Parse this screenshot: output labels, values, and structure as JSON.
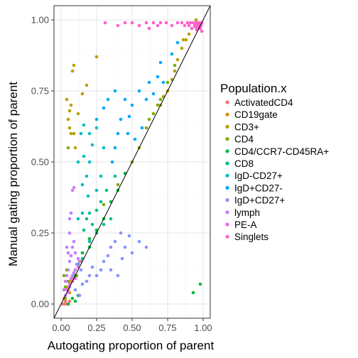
{
  "chart_data": {
    "type": "scatter",
    "xlabel": "Autogating proportion of parent",
    "ylabel": "Manual gating proportion of parent",
    "xlim": [
      -0.05,
      1.05
    ],
    "ylim": [
      -0.05,
      1.05
    ],
    "x_ticks": [
      "0.00",
      "0.25",
      "0.50",
      "0.75",
      "1.00"
    ],
    "y_ticks": [
      "0.00",
      "0.25",
      "0.50",
      "0.75",
      "1.00"
    ],
    "tick_values": [
      0,
      0.25,
      0.5,
      0.75,
      1.0
    ],
    "grid": true,
    "reference_line": "y = x",
    "legend_title": "Population.x",
    "legend_position": "right",
    "series": [
      {
        "name": "ActivatedCD4",
        "color": "#F8766D",
        "points": [
          [
            0.01,
            0.0
          ],
          [
            0.02,
            0.0
          ],
          [
            0.03,
            0.01
          ],
          [
            0.04,
            0.0
          ],
          [
            0.05,
            0.0
          ],
          [
            0.06,
            0.01
          ],
          [
            0.02,
            0.02
          ],
          [
            0.03,
            0.0
          ]
        ]
      },
      {
        "name": "CD19gate",
        "color": "#DE8C00",
        "points": [
          [
            0.05,
            0.05
          ],
          [
            0.08,
            0.1
          ],
          [
            0.1,
            0.12
          ],
          [
            0.12,
            0.14
          ],
          [
            0.06,
            0.04
          ],
          [
            0.09,
            0.09
          ],
          [
            0.14,
            0.15
          ],
          [
            0.04,
            0.06
          ],
          [
            0.11,
            0.1
          ],
          [
            0.07,
            0.08
          ]
        ]
      },
      {
        "name": "CD3+",
        "color": "#B79F00",
        "points": [
          [
            0.04,
            0.72
          ],
          [
            0.07,
            0.7
          ],
          [
            0.06,
            0.68
          ],
          [
            0.08,
            0.82
          ],
          [
            0.09,
            0.84
          ],
          [
            0.06,
            0.62
          ],
          [
            0.07,
            0.6
          ],
          [
            0.1,
            0.55
          ],
          [
            0.15,
            0.74
          ],
          [
            0.18,
            0.77
          ],
          [
            0.25,
            0.87
          ],
          [
            0.12,
            0.67
          ],
          [
            0.75,
            0.75
          ],
          [
            0.78,
            0.79
          ],
          [
            0.8,
            0.82
          ],
          [
            0.82,
            0.86
          ],
          [
            0.85,
            0.9
          ],
          [
            0.88,
            0.93
          ],
          [
            0.9,
            0.95
          ],
          [
            0.92,
            0.97
          ],
          [
            0.7,
            0.7
          ],
          [
            0.72,
            0.73
          ],
          [
            0.86,
            0.93
          ],
          [
            0.09,
            0.6
          ],
          [
            0.05,
            0.65
          ],
          [
            0.95,
            1.0
          ]
        ]
      },
      {
        "name": "CD4",
        "color": "#7CAE00",
        "points": [
          [
            0.02,
            0.05
          ],
          [
            0.03,
            0.02
          ],
          [
            0.05,
            0.08
          ],
          [
            0.05,
            0.55
          ],
          [
            0.3,
            0.35
          ],
          [
            0.4,
            0.42
          ],
          [
            0.5,
            0.5
          ],
          [
            0.55,
            0.55
          ],
          [
            0.6,
            0.62
          ],
          [
            0.65,
            0.67
          ],
          [
            0.7,
            0.72
          ],
          [
            0.75,
            0.78
          ],
          [
            0.8,
            0.84
          ],
          [
            0.62,
            0.65
          ],
          [
            0.68,
            0.7
          ],
          [
            0.02,
            0.1
          ],
          [
            0.04,
            0.12
          ],
          [
            0.06,
            0.07
          ],
          [
            0.03,
            0.06
          ]
        ]
      },
      {
        "name": "CD4/CCR7-CD45RA+",
        "color": "#00BA38",
        "points": [
          [
            0.93,
            0.04
          ],
          [
            0.98,
            0.07
          ],
          [
            0.1,
            0.1
          ],
          [
            0.15,
            0.18
          ],
          [
            0.2,
            0.2
          ],
          [
            0.3,
            0.3
          ],
          [
            0.35,
            0.36
          ],
          [
            0.45,
            0.46
          ],
          [
            0.25,
            0.26
          ],
          [
            0.4,
            0.4
          ],
          [
            0.2,
            0.23
          ],
          [
            0.05,
            0.0
          ],
          [
            0.08,
            0.02
          ],
          [
            0.1,
            0.01
          ],
          [
            0.12,
            0.03
          ]
        ]
      },
      {
        "name": "CD8",
        "color": "#00C08B",
        "points": [
          [
            0.18,
            0.3
          ],
          [
            0.2,
            0.32
          ],
          [
            0.22,
            0.28
          ],
          [
            0.25,
            0.33
          ],
          [
            0.28,
            0.36
          ],
          [
            0.16,
            0.26
          ],
          [
            0.3,
            0.28
          ],
          [
            0.35,
            0.3
          ],
          [
            0.2,
            0.22
          ],
          [
            0.25,
            0.25
          ],
          [
            0.12,
            0.14
          ],
          [
            0.15,
            0.16
          ],
          [
            0.32,
            0.4
          ],
          [
            0.38,
            0.45
          ]
        ]
      },
      {
        "name": "IgD-CD27+",
        "color": "#00BFC4",
        "points": [
          [
            0.14,
            0.6
          ],
          [
            0.16,
            0.63
          ],
          [
            0.2,
            0.6
          ],
          [
            0.15,
            0.42
          ],
          [
            0.18,
            0.45
          ],
          [
            0.12,
            0.5
          ],
          [
            0.16,
            0.52
          ],
          [
            0.2,
            0.5
          ],
          [
            0.22,
            0.56
          ],
          [
            0.25,
            0.62
          ],
          [
            0.3,
            0.55
          ],
          [
            0.12,
            0.3
          ],
          [
            0.15,
            0.32
          ],
          [
            0.19,
            0.38
          ],
          [
            0.25,
            0.4
          ],
          [
            0.28,
            0.45
          ]
        ]
      },
      {
        "name": "IgD+CD27-",
        "color": "#00A9FF",
        "points": [
          [
            0.25,
            0.65
          ],
          [
            0.3,
            0.69
          ],
          [
            0.33,
            0.72
          ],
          [
            0.38,
            0.75
          ],
          [
            0.45,
            0.72
          ],
          [
            0.5,
            0.7
          ],
          [
            0.55,
            0.75
          ],
          [
            0.6,
            0.72
          ],
          [
            0.42,
            0.65
          ],
          [
            0.47,
            0.6
          ],
          [
            0.52,
            0.58
          ],
          [
            0.38,
            0.55
          ],
          [
            0.62,
            0.78
          ],
          [
            0.68,
            0.8
          ],
          [
            0.7,
            0.85
          ],
          [
            0.72,
            0.78
          ],
          [
            0.65,
            0.74
          ],
          [
            0.57,
            0.62
          ],
          [
            0.36,
            0.5
          ],
          [
            0.4,
            0.6
          ],
          [
            0.48,
            0.66
          ],
          [
            0.78,
            0.88
          ],
          [
            0.82,
            0.92
          ]
        ]
      },
      {
        "name": "IgD+CD27+",
        "color": "#8494FF",
        "points": [
          [
            0.1,
            0.05
          ],
          [
            0.13,
            0.03
          ],
          [
            0.15,
            0.07
          ],
          [
            0.18,
            0.08
          ],
          [
            0.2,
            0.1
          ],
          [
            0.25,
            0.1
          ],
          [
            0.28,
            0.12
          ],
          [
            0.3,
            0.15
          ],
          [
            0.35,
            0.12
          ],
          [
            0.35,
            0.2
          ],
          [
            0.4,
            0.1
          ],
          [
            0.43,
            0.16
          ],
          [
            0.45,
            0.2
          ],
          [
            0.5,
            0.18
          ],
          [
            0.55,
            0.22
          ],
          [
            0.6,
            0.2
          ],
          [
            0.33,
            0.17
          ],
          [
            0.38,
            0.22
          ],
          [
            0.22,
            0.13
          ],
          [
            0.14,
            0.12
          ],
          [
            0.42,
            0.25
          ],
          [
            0.48,
            0.24
          ]
        ]
      },
      {
        "name": "lymph",
        "color": "#C77CFF",
        "points": [
          [
            0.04,
            0.2
          ],
          [
            0.05,
            0.18
          ],
          [
            0.06,
            0.15
          ],
          [
            0.07,
            0.17
          ],
          [
            0.08,
            0.2
          ],
          [
            0.09,
            0.22
          ],
          [
            0.1,
            0.18
          ],
          [
            0.12,
            0.16
          ],
          [
            0.06,
            0.3
          ],
          [
            0.07,
            0.32
          ],
          [
            0.06,
            0.25
          ],
          [
            0.08,
            0.4
          ],
          [
            0.09,
            0.41
          ],
          [
            0.02,
            0.05
          ],
          [
            0.03,
            0.08
          ],
          [
            0.04,
            0.1
          ],
          [
            0.05,
            0.12
          ],
          [
            0.06,
            0.06
          ],
          [
            0.08,
            0.1
          ],
          [
            0.1,
            0.12
          ],
          [
            0.03,
            0.03
          ],
          [
            0.05,
            0.04
          ],
          [
            0.11,
            0.14
          ],
          [
            0.13,
            0.15
          ],
          [
            0.09,
            0.11
          ],
          [
            0.07,
            0.09
          ]
        ]
      },
      {
        "name": "PE-A",
        "color": "#ED68ED",
        "points": [
          [
            0.06,
            0.07
          ],
          [
            0.08,
            0.08
          ],
          [
            0.1,
            0.09
          ],
          [
            0.04,
            0.05
          ],
          [
            0.12,
            0.13
          ]
        ]
      },
      {
        "name": "Singlets",
        "color": "#FF61CC",
        "points": [
          [
            0.31,
            0.99
          ],
          [
            0.4,
            0.98
          ],
          [
            0.45,
            0.99
          ],
          [
            0.5,
            0.99
          ],
          [
            0.55,
            0.98
          ],
          [
            0.6,
            0.99
          ],
          [
            0.62,
            0.97
          ],
          [
            0.65,
            0.99
          ],
          [
            0.68,
            0.98
          ],
          [
            0.7,
            0.99
          ],
          [
            0.74,
            0.99
          ],
          [
            0.78,
            0.98
          ],
          [
            0.82,
            0.99
          ],
          [
            0.85,
            0.99
          ],
          [
            0.87,
            0.98
          ],
          [
            0.89,
            0.99
          ],
          [
            0.9,
            0.98
          ],
          [
            0.91,
            0.99
          ],
          [
            0.92,
            0.97
          ],
          [
            0.93,
            0.99
          ],
          [
            0.94,
            0.98
          ],
          [
            0.95,
            0.99
          ],
          [
            0.96,
            0.98
          ],
          [
            0.97,
            0.99
          ],
          [
            0.98,
            0.98
          ],
          [
            0.99,
            0.99
          ],
          [
            0.965,
            0.97
          ],
          [
            0.975,
            0.975
          ],
          [
            0.985,
            0.98
          ],
          [
            0.955,
            0.965
          ],
          [
            0.99,
            0.96
          ],
          [
            0.98,
            0.97
          ],
          [
            0.97,
            0.985
          ],
          [
            0.96,
            0.99
          ],
          [
            0.945,
            0.975
          ]
        ]
      }
    ]
  }
}
